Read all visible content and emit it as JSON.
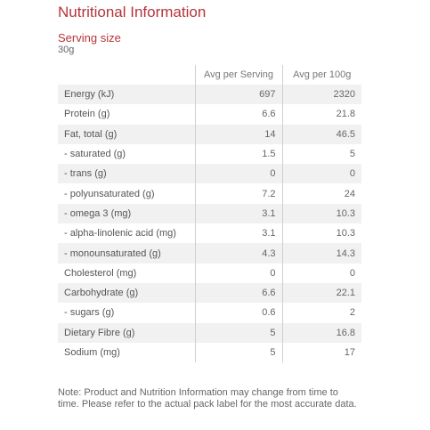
{
  "title": "Nutritional Information",
  "serving": {
    "label": "Serving size",
    "value": "30g"
  },
  "table": {
    "headers": [
      "Avg per Serving",
      "Avg per 100g"
    ],
    "rows": [
      {
        "label": "Energy (kJ)",
        "per_serving": "697",
        "per_100g": "2320"
      },
      {
        "label": "Protein (g)",
        "per_serving": "6.6",
        "per_100g": "21.8"
      },
      {
        "label": "Fat, total (g)",
        "per_serving": "14",
        "per_100g": "46.5"
      },
      {
        "label": "- saturated (g)",
        "per_serving": "1.5",
        "per_100g": "5"
      },
      {
        "label": "- trans (g)",
        "per_serving": "0",
        "per_100g": "0"
      },
      {
        "label": "- polyunsaturated (g)",
        "per_serving": "7.2",
        "per_100g": "24"
      },
      {
        "label": "- omega 3 (mg)",
        "per_serving": "3.1",
        "per_100g": "10.3"
      },
      {
        "label": "- alpha-linolenic acid (mg)",
        "per_serving": "3.1",
        "per_100g": "10.3"
      },
      {
        "label": "- monounsaturated (g)",
        "per_serving": "4.3",
        "per_100g": "14.3"
      },
      {
        "label": "Cholesterol (mg)",
        "per_serving": "0",
        "per_100g": "0"
      },
      {
        "label": "Carbohydrate (g)",
        "per_serving": "6.6",
        "per_100g": "22.1"
      },
      {
        "label": "- sugars (g)",
        "per_serving": "0.6",
        "per_100g": "2"
      },
      {
        "label": "Dietary Fibre (g)",
        "per_serving": "5",
        "per_100g": "16.8"
      },
      {
        "label": "Sodium (mg)",
        "per_serving": "5",
        "per_100g": "17"
      }
    ]
  },
  "note": "Note: Product and Nutrition Information may change from time to time. Please refer to the actual pack label for the most accurate data.",
  "colors": {
    "title": "#b5343b",
    "stripe": "#f1f1f1",
    "border": "#cfcfcf"
  }
}
